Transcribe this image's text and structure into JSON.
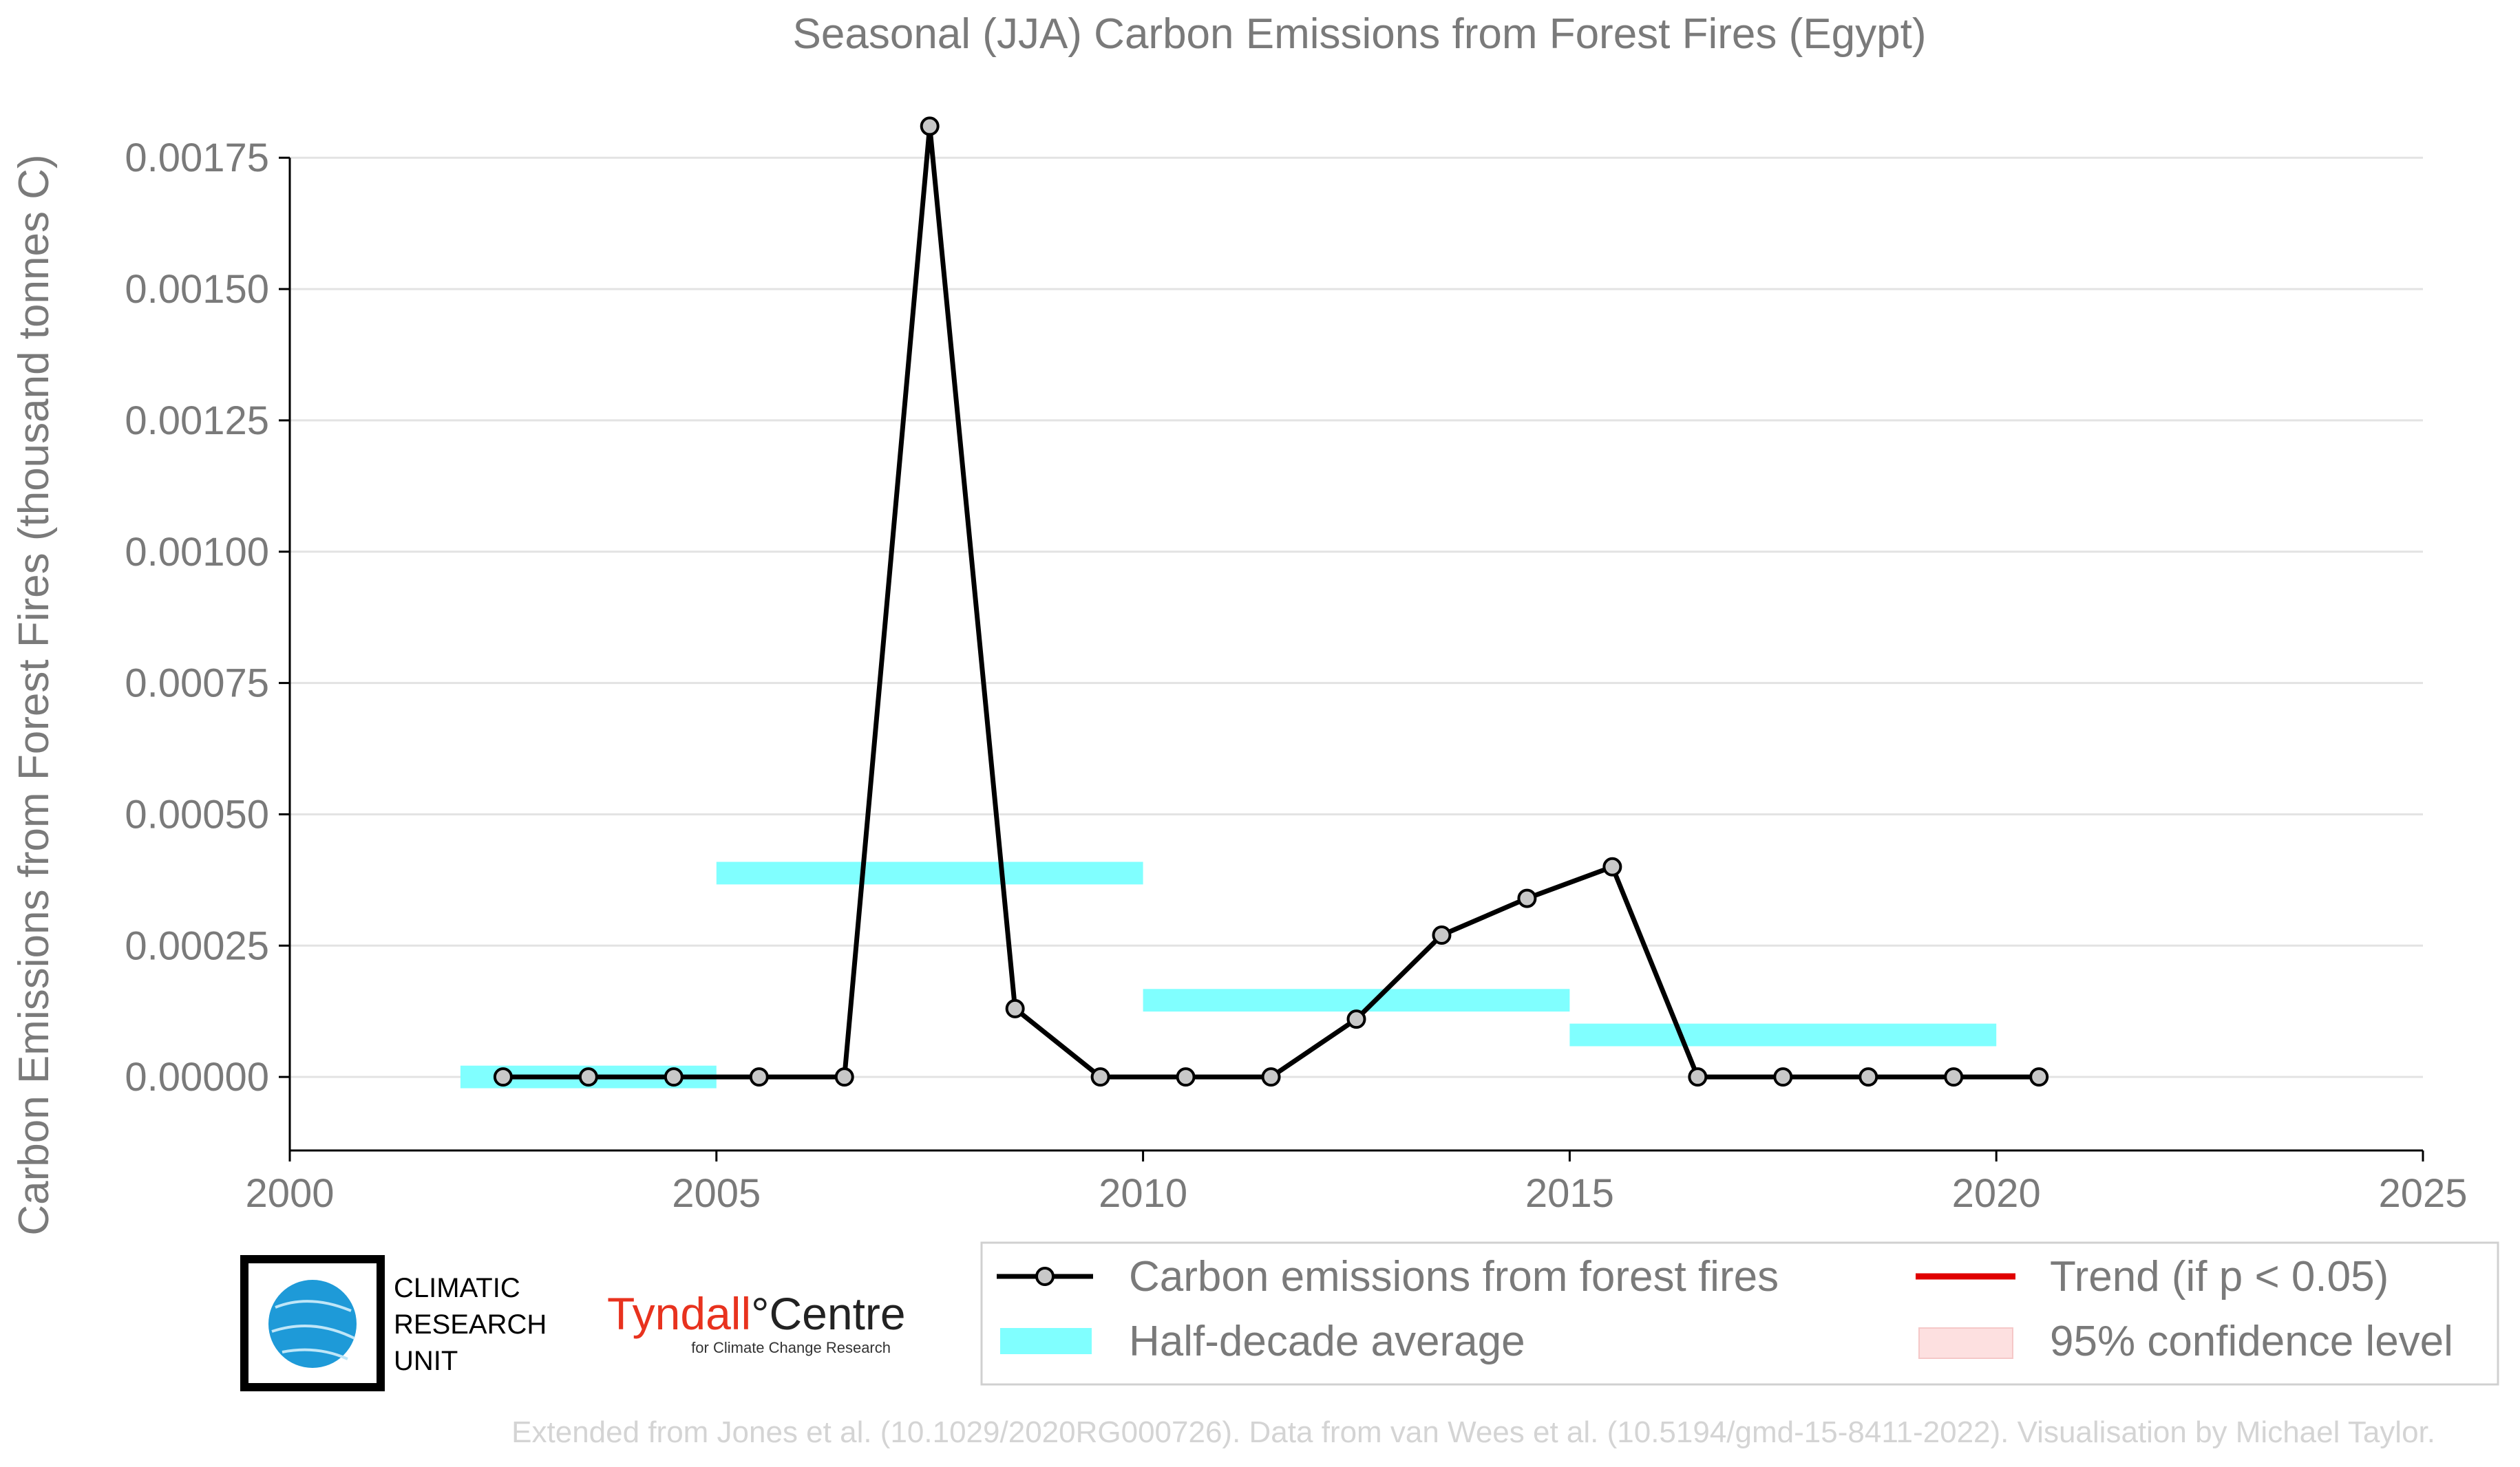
{
  "chart_data": {
    "type": "line",
    "title": "Seasonal (JJA) Carbon Emissions from Forest Fires (Egypt)",
    "xlabel": "",
    "ylabel": "Carbon Emissions from Forest Fires (thousand tonnes C)",
    "xlim": [
      2000,
      2025
    ],
    "ylim": [
      -0.00014,
      0.00188
    ],
    "x_ticks": [
      "2000",
      "2005",
      "2010",
      "2015",
      "2020",
      "2025"
    ],
    "y_ticks": [
      "0.00000",
      "0.00025",
      "0.00050",
      "0.00075",
      "0.00100",
      "0.00125",
      "0.00150",
      "0.00175"
    ],
    "grid": "horizontal",
    "series": [
      {
        "name": "Carbon emissions from forest fires",
        "color": "#000000",
        "marker_color": "#c8c8c8",
        "x": [
          2002.5,
          2003.5,
          2004.5,
          2005.5,
          2006.5,
          2007.5,
          2008.5,
          2009.5,
          2010.5,
          2011.5,
          2012.5,
          2013.5,
          2014.5,
          2015.5,
          2016.5,
          2017.5,
          2018.5,
          2019.5,
          2020.5
        ],
        "y": [
          0,
          0,
          0,
          0,
          0,
          0.00181,
          0.00013,
          0,
          0,
          0,
          0.00011,
          0.00027,
          0.00034,
          0.0004,
          0,
          0,
          0,
          0,
          0
        ]
      }
    ],
    "half_decade_average": {
      "name": "Half-decade average",
      "color": "#80ffff",
      "segments": [
        {
          "x0": 2002,
          "x1": 2005,
          "y": 0
        },
        {
          "x0": 2005,
          "x1": 2010,
          "y": 0.000388
        },
        {
          "x0": 2010,
          "x1": 2015,
          "y": 0.000146
        },
        {
          "x0": 2015,
          "x1": 2020,
          "y": 8e-05
        }
      ]
    },
    "legend": {
      "placement": "bottom-right",
      "entries": [
        {
          "label": "Carbon emissions from forest fires",
          "kind": "line-marker",
          "color": "#000000"
        },
        {
          "label": "Trend (if p < 0.05)",
          "kind": "line",
          "color": "#e00000"
        },
        {
          "label": "Half-decade average",
          "kind": "band",
          "color": "#80ffff"
        },
        {
          "label": "95% confidence level",
          "kind": "band",
          "color": "#fde0e0"
        }
      ]
    }
  },
  "logos": {
    "cru_lines": [
      "CLIMATIC",
      "RESEARCH",
      "UNIT"
    ],
    "tyndall_main_a": "Tyndall",
    "tyndall_main_b": "°Centre",
    "tyndall_sub": "for Climate Change Research"
  },
  "credit": "Extended from Jones et al. (10.1029/2020RG000726). Data from van Wees et al. (10.5194/gmd-15-8411-2022). Visualisation by Michael Taylor."
}
